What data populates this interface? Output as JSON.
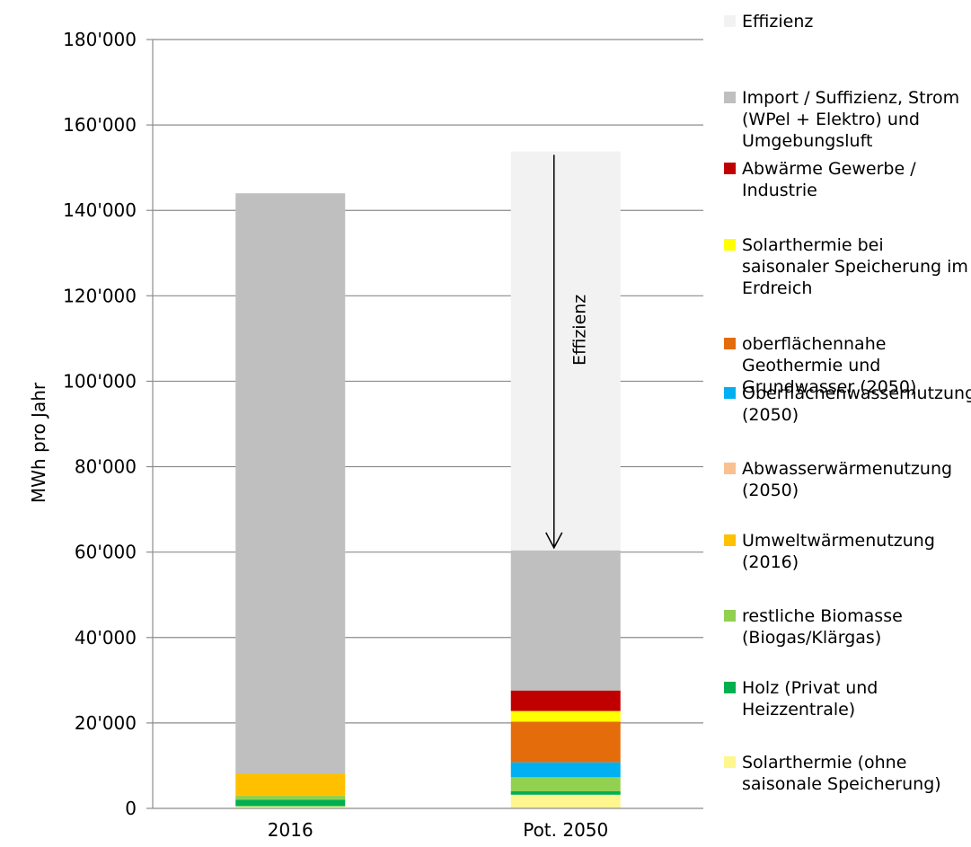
{
  "chart_data": {
    "type": "bar",
    "stacked": true,
    "categories": [
      "2016",
      "Pot. 2050"
    ],
    "ylabel": "MWh pro Jahr",
    "xlabel": "",
    "ylim": [
      0,
      180000
    ],
    "yticks": [
      0,
      20000,
      40000,
      60000,
      80000,
      100000,
      120000,
      140000,
      160000,
      180000
    ],
    "ytick_labels": [
      "0",
      "20'000",
      "40'000",
      "60'000",
      "80'000",
      "100'000",
      "120'000",
      "140'000",
      "160'000",
      "180'000"
    ],
    "grid": true,
    "legend_position": "right",
    "series": [
      {
        "name": "Solarthermie (ohne saisonale Speicherung)",
        "color": "#FFF68F",
        "values": [
          500,
          3200
        ]
      },
      {
        "name": "Holz (Privat und Heizzentrale)",
        "color": "#00B050",
        "values": [
          1500,
          800
        ]
      },
      {
        "name": "restliche Biomasse (Biogas/Klärgas)",
        "color": "#92D050",
        "values": [
          1000,
          3300
        ]
      },
      {
        "name": "Umweltwärmenutzung (2016)",
        "color": "#FFC000",
        "values": [
          5200,
          0
        ]
      },
      {
        "name": "Abwasserwärmenutzung (2050)",
        "color": "#FAC090",
        "values": [
          0,
          0
        ]
      },
      {
        "name": "Oberflächenwassernutzung (2050)",
        "color": "#00B0F0",
        "values": [
          0,
          3500
        ]
      },
      {
        "name": "oberflächennahe Geothermie und Grundwasser (2050)",
        "color": "#E46C0A",
        "values": [
          0,
          9500
        ]
      },
      {
        "name": "Solarthermie bei saisonaler Speicherung im Erdreich",
        "color": "#FFFF00",
        "values": [
          0,
          2500
        ]
      },
      {
        "name": "Abwärme Gewerbe / Industrie",
        "color": "#C00000",
        "values": [
          0,
          4800
        ]
      },
      {
        "name": "Import / Suffizienz, Strom (WPel + Elektro) und Umgebungsluft",
        "color": "#BFBFBF",
        "values": [
          135800,
          32800
        ]
      },
      {
        "name": "Effizienz",
        "color": "#F2F2F2",
        "values": [
          0,
          93400
        ]
      }
    ],
    "annotations": [
      {
        "text": "Effizienz",
        "category": "Pot. 2050",
        "arrow_from": 153000,
        "arrow_to": 61000
      }
    ]
  },
  "legend_order": [
    10,
    9,
    8,
    7,
    6,
    5,
    4,
    3,
    2,
    1,
    0
  ]
}
